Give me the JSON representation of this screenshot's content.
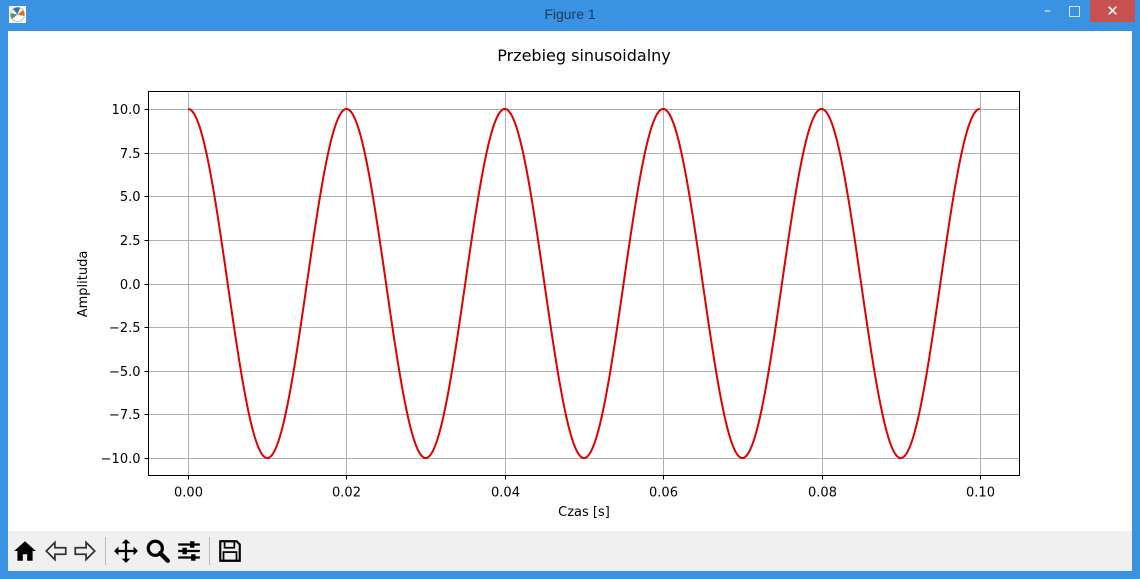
{
  "window": {
    "title": "Figure 1",
    "minimize": "–",
    "maximize": "□",
    "close": "✕"
  },
  "toolbar": {
    "buttons": [
      {
        "name": "home-button",
        "icon": "home-icon"
      },
      {
        "name": "back-button",
        "icon": "arrow-left-icon"
      },
      {
        "name": "forward-button",
        "icon": "arrow-right-icon"
      },
      {
        "name": "pan-button",
        "icon": "move-icon"
      },
      {
        "name": "zoom-button",
        "icon": "magnifier-icon"
      },
      {
        "name": "configure-subplots-button",
        "icon": "sliders-icon"
      },
      {
        "name": "save-button",
        "icon": "floppy-disk-icon"
      }
    ]
  },
  "chart_data": {
    "type": "line",
    "title": "Przebieg sinusoidalny",
    "xlabel": "Czas [s]",
    "ylabel": "Amplituda",
    "xlim": [
      -0.005,
      0.105
    ],
    "ylim": [
      -11,
      11
    ],
    "xticks": [
      "0.00",
      "0.02",
      "0.04",
      "0.06",
      "0.08",
      "0.10"
    ],
    "yticks": [
      "10.0",
      "7.5",
      "5.0",
      "2.5",
      "0.0",
      "−2.5",
      "−5.0",
      "−7.5",
      "−10.0"
    ],
    "grid": true,
    "series": [
      {
        "function": "10*cos(2*pi*50*t)",
        "amplitude": 10,
        "frequency_hz": 50,
        "x_range": [
          0,
          0.1
        ],
        "color": "#e00000"
      }
    ]
  }
}
